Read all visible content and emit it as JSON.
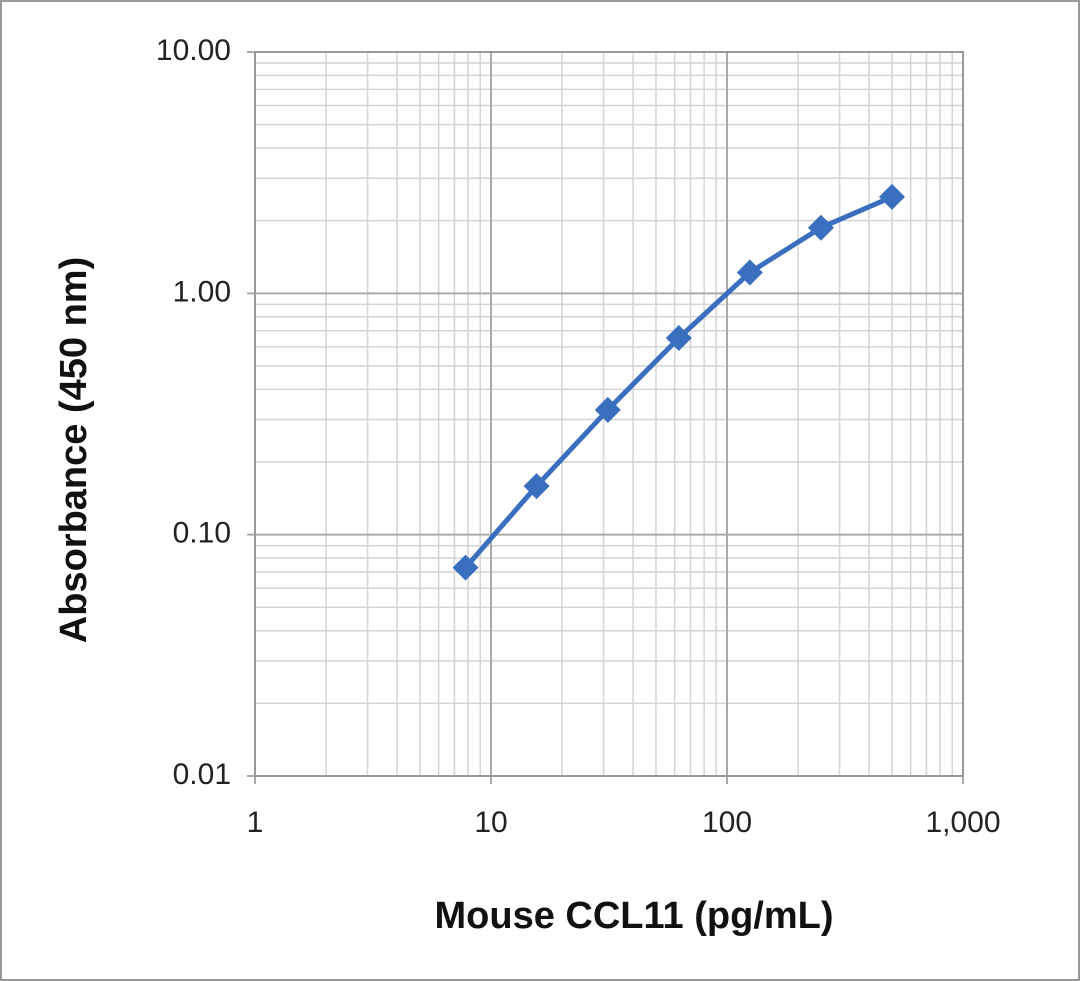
{
  "chart_data": {
    "type": "line",
    "x_label": "Mouse CCL11 (pg/mL)",
    "y_label": "Absorbance (450 nm)",
    "x_log": true,
    "y_log": true,
    "grid": true,
    "minor_grid": true,
    "xlim": [
      1,
      1000
    ],
    "ylim": [
      0.01,
      10
    ],
    "xticks": [
      1,
      10,
      100,
      {
        "value": 1000,
        "label": "1,000"
      }
    ],
    "yticks": [
      0.01,
      {
        "value": 0.1,
        "label": "0.10"
      },
      {
        "value": 1,
        "label": "1.00"
      },
      {
        "value": 10,
        "label": "10.00"
      }
    ],
    "series": [
      {
        "color": "#3a6fc0",
        "x": [
          7.8,
          15.6,
          31.25,
          62.5,
          125,
          250,
          500
        ],
        "values": [
          0.073,
          0.159,
          0.329,
          0.653,
          1.22,
          1.87,
          2.51
        ]
      }
    ]
  }
}
